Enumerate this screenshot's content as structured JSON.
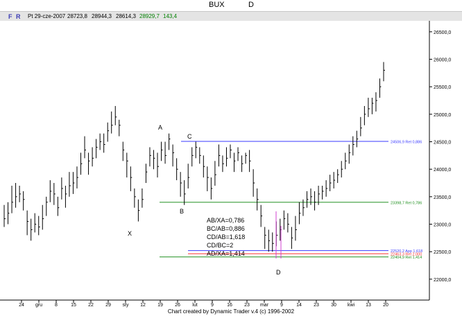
{
  "header": {
    "symbol": "BUX",
    "period": "D"
  },
  "info_bar": {
    "f_label": "F",
    "r_label": "R",
    "date": "Pt 29-cze-2007",
    "open": "28723,8",
    "high": "28944,3",
    "low": "28614,3",
    "close": "28929,7",
    "change": "143,4",
    "colors": {
      "fr": "#3b3bb5",
      "close": "#008000",
      "change": "#008000"
    }
  },
  "chart_data": {
    "type": "bar",
    "y_ticks": [
      22000,
      22500,
      23000,
      23500,
      24000,
      24500,
      25000,
      25500,
      26000,
      26500
    ],
    "y_tick_labels": [
      "22000,0",
      "22500,0",
      "23000,0",
      "23500,0",
      "24000,0",
      "24500,0",
      "25000,0",
      "25500,0",
      "26000,0",
      "26500,0"
    ],
    "ylim": [
      21620,
      26700
    ],
    "x_tick_labels": [
      "24",
      "gru",
      "8",
      "15",
      "22",
      "29",
      "sty",
      "12",
      "19",
      "26",
      "lut",
      "9",
      "16",
      "23",
      "mar",
      "9",
      "14",
      "23",
      "30",
      "kwi",
      "13",
      "20"
    ],
    "pattern_labels": [
      "X",
      "A",
      "B",
      "C",
      "D"
    ],
    "ratios_box": [
      "AB/XA=0,786",
      "BC/AB=0,886",
      "CD/AB=1,618",
      "CD/BC=2",
      "AD/XA=1,414"
    ],
    "levels": [
      {
        "value": 24506.9,
        "label": "24506,9 Ret 0,886",
        "color": "#3a3aff"
      },
      {
        "value": 23398.7,
        "label": "23398,7 Ret 0,786",
        "color": "#1f8f1f"
      },
      {
        "value": 22520.2,
        "label": "22520,2 App 1,618",
        "color": "#3a3aff"
      },
      {
        "value": 22463.3,
        "label": "22463,3 Ret 2,000",
        "color": "#ff3030"
      },
      {
        "value": 22404.9,
        "label": "22404,9 Ret 1,414",
        "color": "#1f8f1f"
      }
    ],
    "grid": false,
    "bars": [
      [
        23100,
        22950,
        23350
      ],
      [
        23200,
        23000,
        23400
      ],
      [
        23400,
        23200,
        23700
      ],
      [
        23500,
        23300,
        23750
      ],
      [
        23550,
        23400,
        23700
      ],
      [
        23450,
        23250,
        23600
      ],
      [
        23050,
        22800,
        23250
      ],
      [
        22900,
        22700,
        23100
      ],
      [
        23000,
        22850,
        23200
      ],
      [
        22950,
        22800,
        23150
      ],
      [
        23100,
        22900,
        23350
      ],
      [
        23400,
        23150,
        23500
      ],
      [
        23600,
        23400,
        23800
      ],
      [
        23550,
        23350,
        23750
      ],
      [
        23300,
        23150,
        23500
      ],
      [
        23650,
        23450,
        23850
      ],
      [
        23550,
        23300,
        23700
      ],
      [
        23700,
        23500,
        23950
      ],
      [
        23750,
        23550,
        23950
      ],
      [
        23850,
        23650,
        24050
      ],
      [
        24100,
        23900,
        24300
      ],
      [
        24350,
        24200,
        24600
      ],
      [
        24150,
        23900,
        24300
      ],
      [
        24200,
        24050,
        24400
      ],
      [
        24400,
        24200,
        24550
      ],
      [
        24500,
        24350,
        24650
      ],
      [
        24450,
        24300,
        24650
      ],
      [
        24700,
        24500,
        24850
      ],
      [
        24800,
        24650,
        25050
      ],
      [
        24950,
        24800,
        25150
      ],
      [
        24800,
        24600,
        24900
      ],
      [
        24350,
        24150,
        24500
      ],
      [
        24150,
        23850,
        24300
      ],
      [
        23850,
        23600,
        24050
      ],
      [
        23500,
        23300,
        23650
      ],
      [
        23250,
        23050,
        23450
      ],
      [
        23450,
        23300,
        23650
      ],
      [
        23950,
        23750,
        24100
      ],
      [
        24250,
        24050,
        24400
      ],
      [
        24200,
        24000,
        24350
      ],
      [
        24050,
        23850,
        24300
      ],
      [
        24350,
        24150,
        24500
      ],
      [
        24250,
        24100,
        24500
      ],
      [
        24550,
        24350,
        24650
      ],
      [
        24300,
        24050,
        24450
      ],
      [
        24000,
        23800,
        24200
      ],
      [
        23750,
        23500,
        23950
      ],
      [
        23550,
        23350,
        23800
      ],
      [
        23850,
        23650,
        24100
      ],
      [
        24250,
        24050,
        24400
      ],
      [
        24400,
        24200,
        24500
      ],
      [
        24250,
        24100,
        24400
      ],
      [
        24050,
        23850,
        24250
      ],
      [
        23850,
        23600,
        24050
      ],
      [
        23650,
        23450,
        23850
      ],
      [
        23900,
        23700,
        24150
      ],
      [
        24250,
        24050,
        24450
      ],
      [
        24100,
        23950,
        24250
      ],
      [
        24200,
        24050,
        24400
      ],
      [
        24350,
        24200,
        24450
      ],
      [
        24150,
        23950,
        24300
      ],
      [
        24300,
        24150,
        24400
      ],
      [
        24100,
        23950,
        24250
      ],
      [
        24250,
        24100,
        24300
      ],
      [
        24150,
        23950,
        24350
      ],
      [
        23750,
        23500,
        24000
      ],
      [
        23450,
        23250,
        23650
      ],
      [
        23150,
        22950,
        23350
      ],
      [
        22800,
        22550,
        22950
      ],
      [
        22700,
        22500,
        22900
      ],
      [
        22650,
        22500,
        22850
      ],
      [
        22800,
        22600,
        23050
      ],
      [
        22900,
        22700,
        23100
      ],
      [
        23100,
        22900,
        23250
      ],
      [
        23000,
        22850,
        23200
      ],
      [
        22750,
        22550,
        22950
      ],
      [
        22900,
        22700,
        23150
      ],
      [
        23200,
        23000,
        23400
      ],
      [
        23300,
        23150,
        23450
      ],
      [
        23450,
        23300,
        23600
      ],
      [
        23500,
        23350,
        23650
      ],
      [
        23400,
        23250,
        23600
      ],
      [
        23550,
        23350,
        23700
      ],
      [
        23600,
        23450,
        23700
      ],
      [
        23650,
        23500,
        23800
      ],
      [
        23750,
        23600,
        23900
      ],
      [
        23800,
        23650,
        23950
      ],
      [
        23900,
        23750,
        24000
      ],
      [
        24000,
        23850,
        24150
      ],
      [
        24150,
        24000,
        24300
      ],
      [
        24300,
        24100,
        24450
      ],
      [
        24450,
        24250,
        24600
      ],
      [
        24550,
        24400,
        24700
      ],
      [
        24750,
        24600,
        24950
      ],
      [
        25000,
        24800,
        25150
      ],
      [
        25100,
        24950,
        25300
      ],
      [
        25200,
        25000,
        25300
      ],
      [
        25250,
        25050,
        25400
      ],
      [
        25500,
        25300,
        25650
      ],
      [
        25800,
        25600,
        25950
      ]
    ]
  },
  "footer": {
    "credit": "Chart created by Dynamic Trader v.4  (c) 1996-2002"
  }
}
